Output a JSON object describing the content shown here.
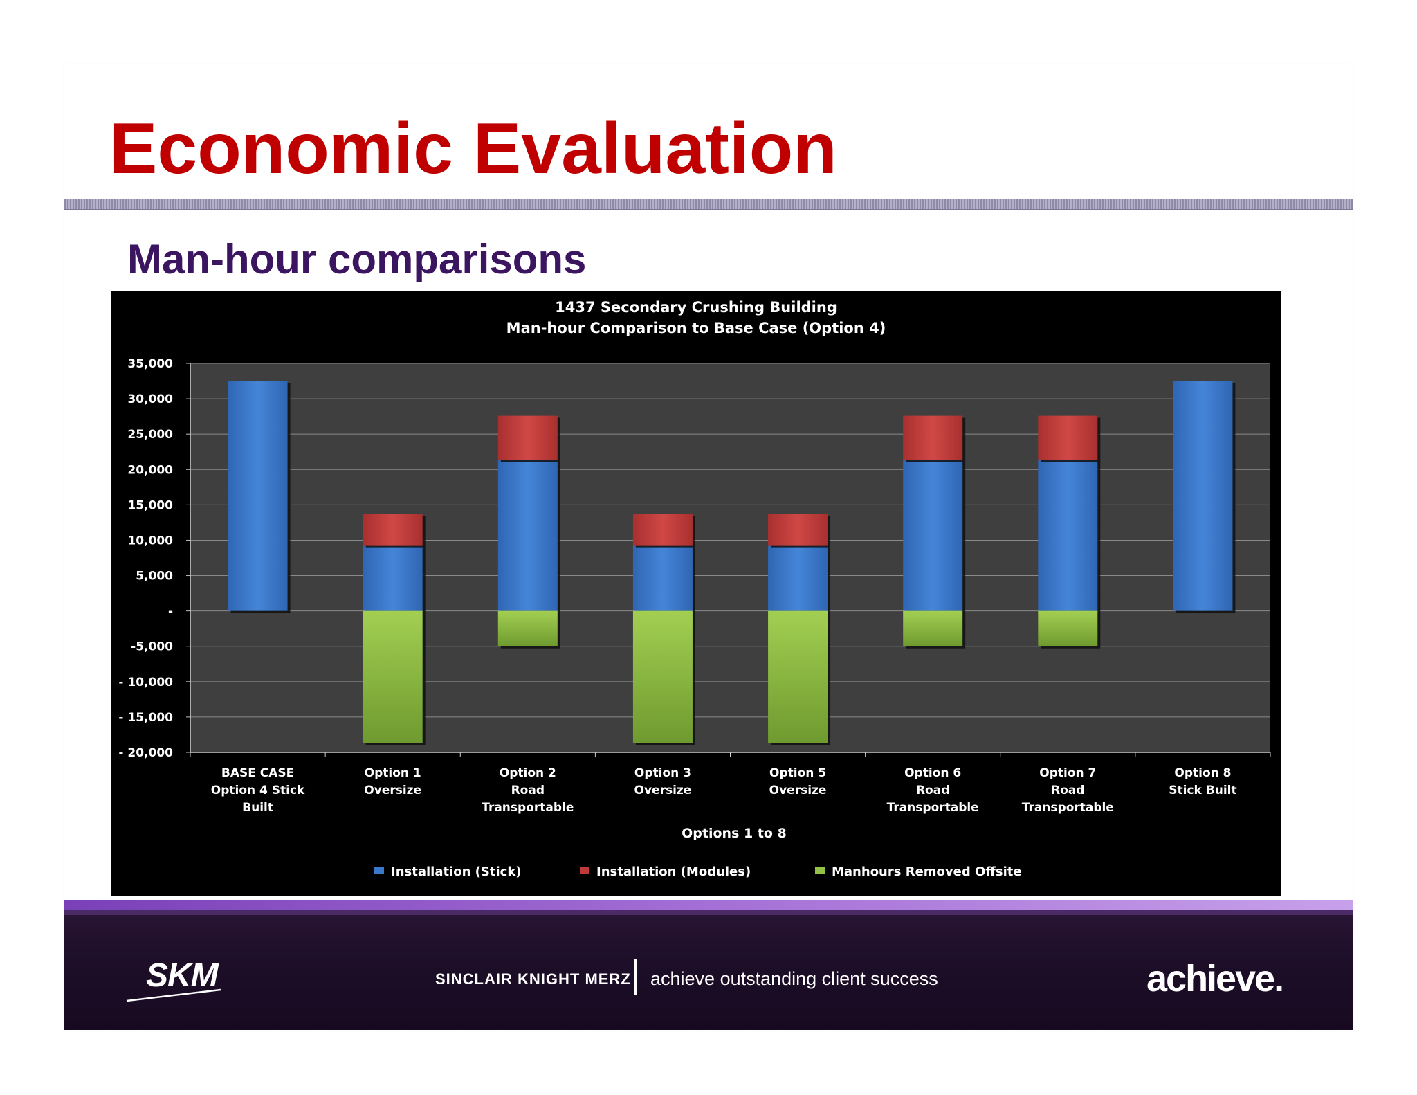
{
  "slide": {
    "title": "Economic Evaluation",
    "subtitle": "Man-hour comparisons"
  },
  "chart_data": {
    "type": "bar",
    "stacked": true,
    "title_lines": [
      "1437 Secondary Crushing Building",
      "Man-hour Comparison to Base Case (Option 4)"
    ],
    "xlabel": "Options 1 to 8",
    "ylabel": "",
    "ylim": [
      -20000,
      35000
    ],
    "yticks": [
      35000,
      30000,
      25000,
      20000,
      15000,
      10000,
      5000,
      0,
      -5000,
      -10000,
      -15000,
      -20000
    ],
    "ytick_labels": [
      "35,000",
      "30,000",
      "25,000",
      "20,000",
      "15,000",
      "10,000",
      "5,000",
      "-",
      "-5,000",
      "- 10,000",
      "- 15,000",
      "- 20,000"
    ],
    "categories": [
      [
        "BASE CASE",
        "Option 4 Stick",
        "Built"
      ],
      [
        "Option 1",
        "Oversize"
      ],
      [
        "Option 2",
        "Road",
        "Transportable"
      ],
      [
        "Option 3",
        "Oversize"
      ],
      [
        "Option 5",
        "Oversize"
      ],
      [
        "Option 6",
        "Road",
        "Transportable"
      ],
      [
        "Option 7",
        "Road",
        "Transportable"
      ],
      [
        "Option 8",
        "Stick Built"
      ]
    ],
    "series": [
      {
        "name": "Installation (Stick)",
        "color": "#3a78cc",
        "values": [
          32500,
          9200,
          21300,
          9200,
          9200,
          21300,
          21300,
          32500
        ]
      },
      {
        "name": "Installation (Modules)",
        "color": "#c0393b",
        "values": [
          0,
          4500,
          6300,
          4500,
          4500,
          6300,
          6300,
          0
        ]
      },
      {
        "name": "Manhours Removed Offsite",
        "color": "#93c047",
        "values": [
          0,
          -18700,
          -5000,
          -18700,
          -18700,
          -5000,
          -5000,
          0
        ]
      }
    ],
    "legend_position": "bottom",
    "grid": true,
    "plot_background": "#3f3f3f",
    "chart_background": "#000000"
  },
  "footer": {
    "logo_text": "SKM",
    "company": "SINCLAIR KNIGHT MERZ",
    "tagline": "achieve outstanding client success",
    "brand_mark": "achieve."
  }
}
